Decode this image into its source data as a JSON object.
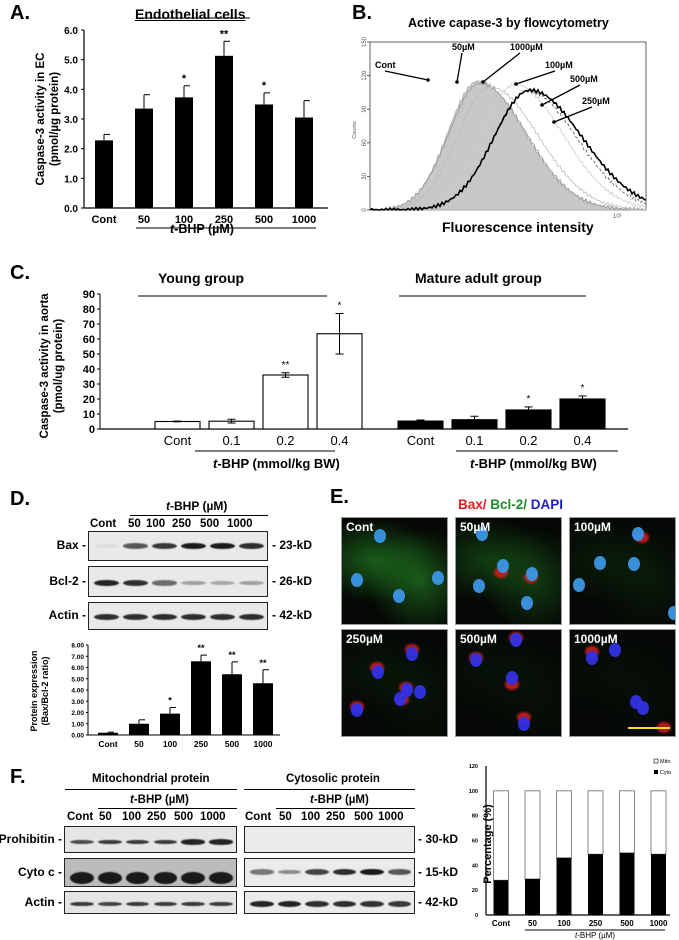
{
  "panels": {
    "A": {
      "label": "A.",
      "title": "Endothelial cells",
      "ylabel_1": "Caspase-3 activity in EC",
      "ylabel_2": "(pmol/µg protein)",
      "xlabel_italic": "t",
      "xlabel_rest": "-BHP (µM)"
    },
    "B": {
      "label": "B.",
      "title": "Active capase-3 by flowcytometry",
      "xlabel": "Fluorescence intensity",
      "ylabel": "Counts",
      "x_tick": "10¹",
      "annotations": [
        "Cont",
        "50µM",
        "1000µM",
        "100µM",
        "500µM",
        "250µM"
      ]
    },
    "C": {
      "label": "C.",
      "ylabel_1": "Caspase-3 activity in aorta",
      "ylabel_2": "(pmol/ug protein)",
      "group_young": "Young group",
      "group_mature": "Mature adult group",
      "xlabel_italic": "t",
      "xlabel_rest": "-BHP (mmol/kg BW)"
    },
    "D": {
      "label": "D.",
      "header_italic": "t",
      "header_rest": "-BHP (µM)",
      "lanes": [
        "Cont",
        "50",
        "100",
        "250",
        "500",
        "1000"
      ],
      "rows": [
        {
          "name": "Bax -",
          "kd": "- 23-kD"
        },
        {
          "name": "Bcl-2 -",
          "kd": "- 26-kD"
        },
        {
          "name": "Actin -",
          "kd": "- 42-kD"
        }
      ],
      "ylabel_1": "Protein expression",
      "ylabel_2": "(Bax/Bcl-2 ratio)"
    },
    "E": {
      "label": "E.",
      "title_bax": "Bax/",
      "title_bcl": " Bcl-2/",
      "title_dapi": " DAPI",
      "colors": {
        "bax": "#e0201f",
        "bcl": "#1f8a2a",
        "dapi": "#2020c0",
        "scale_bar": "#f0e020"
      },
      "images": [
        "Cont",
        "50µM",
        "100µM",
        "250µM",
        "500µM",
        "1000µM"
      ]
    },
    "F": {
      "label": "F.",
      "mito_title": "Mitochondrial protein",
      "cyto_title": "Cytosolic protein",
      "header_italic": "t",
      "header_rest": "-BHP (µM)",
      "lanes": [
        "Cont",
        "50",
        "100",
        "250",
        "500",
        "1000"
      ],
      "rows": [
        {
          "name": "Prohibitin -",
          "kd": "- 30-kD"
        },
        {
          "name": "Cyto c -",
          "kd": "- 15-kD"
        },
        {
          "name": "Actin -",
          "kd": "- 42-kD"
        }
      ],
      "ylabel": "Percentage (%)",
      "legend": [
        "Mito",
        "Cyto"
      ],
      "xlabel_italic": "t",
      "xlabel_rest": "-BHP (µM)"
    }
  },
  "chart_data": [
    {
      "id": "A",
      "type": "bar",
      "title": "Endothelial cells",
      "xlabel": "t-BHP (µM)",
      "ylabel": "Caspase-3 activity in EC (pmol/µg protein)",
      "categories": [
        "Cont",
        "50",
        "100",
        "250",
        "500",
        "1000"
      ],
      "values": [
        2.28,
        3.35,
        3.73,
        5.13,
        3.49,
        3.05
      ],
      "error_upper": [
        2.48,
        3.82,
        4.12,
        5.62,
        3.88,
        3.62
      ],
      "significance": [
        "",
        "",
        "*",
        "**",
        "*",
        ""
      ],
      "ylim": [
        0,
        6
      ],
      "yticks": [
        "0.0",
        "1.0",
        "2.0",
        "3.0",
        "4.0",
        "5.0",
        "6.0"
      ]
    },
    {
      "id": "B",
      "type": "line",
      "title": "Active capase-3 by flowcytometry",
      "xlabel": "Fluorescence intensity",
      "ylabel": "Counts",
      "yticks": [
        0,
        30,
        60,
        90,
        120,
        150
      ],
      "ylim": [
        0,
        150
      ],
      "series": [
        {
          "name": "Cont",
          "peak": 115
        },
        {
          "name": "50µM",
          "peak": 113
        },
        {
          "name": "1000µM",
          "peak": 112
        },
        {
          "name": "100µM",
          "peak": 112
        },
        {
          "name": "500µM",
          "peak": 108
        },
        {
          "name": "250µM",
          "peak": 108
        }
      ]
    },
    {
      "id": "C",
      "type": "bar",
      "ylabel": "Caspase-3 activity in aorta (pmol/ug protein)",
      "xlabel": "t-BHP (mmol/kg BW)",
      "categories": [
        "Cont",
        "0.1",
        "0.2",
        "0.4"
      ],
      "ylim": [
        0,
        90
      ],
      "yticks": [
        0,
        10,
        20,
        30,
        40,
        50,
        60,
        70,
        80,
        90
      ],
      "series": [
        {
          "name": "Young group",
          "values": [
            5.0,
            5.2,
            36.0,
            63.5
          ],
          "error_upper": [
            5.3,
            6.5,
            37.5,
            77.0
          ],
          "error_lower": [
            4.8,
            4.0,
            34.5,
            50.0
          ],
          "significance": [
            "",
            "",
            "**",
            "*"
          ],
          "fill": "#ffffff"
        },
        {
          "name": "Mature adult group",
          "values": [
            5.3,
            6.2,
            12.7,
            20.0
          ],
          "error_upper": [
            6.0,
            8.5,
            14.7,
            22.0
          ],
          "significance": [
            "",
            "",
            "*",
            "*"
          ],
          "fill": "#000000"
        }
      ]
    },
    {
      "id": "D",
      "type": "bar",
      "ylabel": "Protein expression (Bax/Bcl-2 ratio)",
      "categories": [
        "Cont",
        "50",
        "100",
        "250",
        "500",
        "1000"
      ],
      "values": [
        0.2,
        1.0,
        1.9,
        6.55,
        5.4,
        4.6
      ],
      "error_upper": [
        0.25,
        1.35,
        2.45,
        7.1,
        6.5,
        5.8
      ],
      "significance": [
        "",
        "",
        "*",
        "**",
        "**",
        "**"
      ],
      "ylim": [
        0,
        8
      ],
      "yticks": [
        "0.00",
        "1.00",
        "2.00",
        "3.00",
        "4.00",
        "5.00",
        "6.00",
        "7.00",
        "8.00"
      ]
    },
    {
      "id": "F",
      "type": "bar",
      "stacked": true,
      "ylabel": "Percentage (%)",
      "xlabel": "t-BHP (µM)",
      "categories": [
        "Cont",
        "50",
        "100",
        "250",
        "500",
        "1000"
      ],
      "ylim": [
        0,
        120
      ],
      "yticks": [
        0,
        20,
        40,
        60,
        80,
        100,
        120
      ],
      "series": [
        {
          "name": "Cyto",
          "values": [
            28,
            29,
            46,
            49,
            50,
            49
          ],
          "fill": "#000000"
        },
        {
          "name": "Mito",
          "values": [
            72,
            71,
            54,
            51,
            50,
            51
          ],
          "fill": "#ffffff"
        }
      ]
    }
  ]
}
